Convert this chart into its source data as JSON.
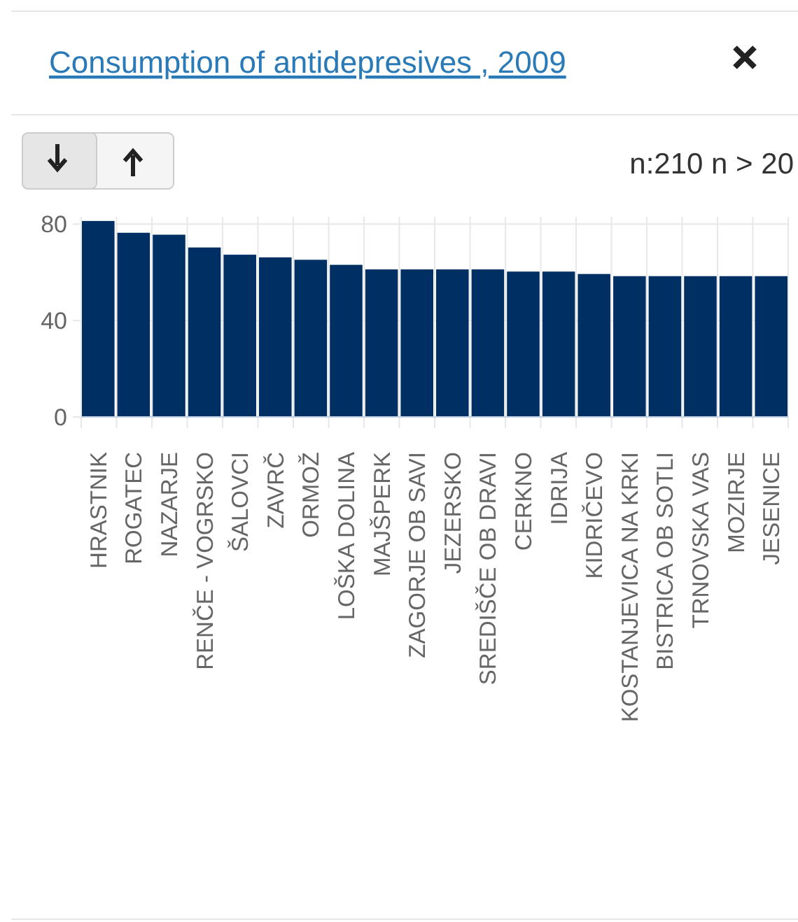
{
  "chart_data": {
    "type": "bar",
    "title": "Consumption of antidepresives , 2009",
    "annotations": [
      "n:210 n > 20"
    ],
    "categories": [
      "HRASTNIK",
      "ROGATEC",
      "NAZARJE",
      "RENČE - VOGRSKO",
      "ŠALOVCI",
      "ZAVRČ",
      "ORMOŽ",
      "LOŠKA DOLINA",
      "MAJŠPERK",
      "ZAGORJE OB SAVI",
      "JEZERSKO",
      "SREDIŠČE OB DRAVI",
      "CERKNO",
      "IDRIJA",
      "KIDRIČEVO",
      "KOSTANJEVICA NA KRKI",
      "BISTRICA OB SOTLI",
      "TRNOVSKA VAS",
      "MOZIRJE",
      "JESENICE"
    ],
    "values": [
      81.3,
      76.4,
      75.6,
      70.3,
      67.3,
      66.2,
      65.2,
      63.1,
      61.2,
      61.2,
      61.2,
      61.2,
      60.3,
      60.3,
      59.3,
      58.4,
      58.4,
      58.4,
      58.4,
      58.4
    ],
    "color": "#002f63",
    "ylim": [
      0,
      83
    ],
    "yticks": [
      0,
      40,
      80
    ],
    "grid": true
  }
}
